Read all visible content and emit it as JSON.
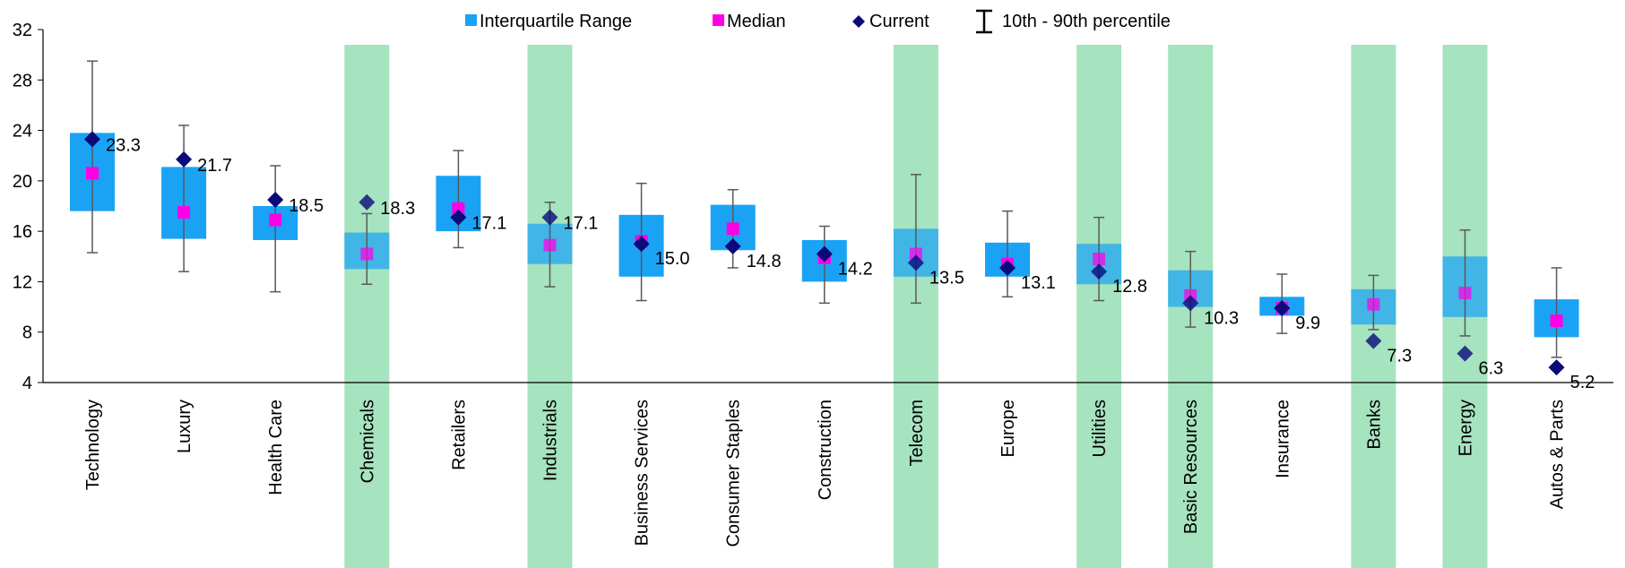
{
  "chart_data": {
    "type": "box",
    "categories": [
      "Technology",
      "Luxury",
      "Health Care",
      "Chemicals",
      "Retailers",
      "Industrials",
      "Business Services",
      "Consumer Staples",
      "Construction",
      "Telecom",
      "Europe",
      "Utilities",
      "Basic Resources",
      "Insurance",
      "Banks",
      "Energy",
      "Autos & Parts"
    ],
    "highlighted": [
      false,
      false,
      false,
      true,
      false,
      true,
      false,
      false,
      false,
      true,
      false,
      true,
      true,
      false,
      true,
      true,
      false
    ],
    "series": [
      {
        "name": "Interquartile Range",
        "q1": [
          17.6,
          15.4,
          15.3,
          13.0,
          16.0,
          13.4,
          12.4,
          14.5,
          12.0,
          12.4,
          12.4,
          11.8,
          10.0,
          9.3,
          8.6,
          9.2,
          7.6
        ],
        "q3": [
          23.8,
          21.1,
          18.0,
          15.9,
          20.4,
          16.6,
          17.3,
          18.1,
          15.3,
          16.2,
          15.1,
          15.0,
          12.9,
          10.8,
          11.4,
          14.0,
          10.6
        ]
      },
      {
        "name": "Median",
        "values": [
          20.6,
          17.5,
          16.9,
          14.2,
          17.8,
          14.9,
          15.2,
          16.2,
          13.9,
          14.2,
          13.4,
          13.8,
          10.9,
          9.9,
          10.2,
          11.1,
          8.9
        ]
      },
      {
        "name": "Current",
        "values": [
          23.3,
          21.7,
          18.5,
          18.3,
          17.1,
          17.1,
          15.0,
          14.8,
          14.2,
          13.5,
          13.1,
          12.8,
          10.3,
          9.9,
          7.3,
          6.3,
          5.2
        ]
      },
      {
        "name": "10th - 90th percentile",
        "p10": [
          14.3,
          12.8,
          11.2,
          11.8,
          14.7,
          11.6,
          10.5,
          13.1,
          10.3,
          10.3,
          10.8,
          10.5,
          8.4,
          7.9,
          8.2,
          7.7,
          6.0
        ],
        "p90": [
          29.5,
          24.4,
          21.2,
          17.4,
          22.4,
          18.3,
          19.8,
          19.3,
          16.4,
          20.5,
          17.6,
          17.1,
          14.4,
          12.6,
          12.5,
          16.1,
          13.1
        ]
      }
    ],
    "current_labels": [
      "23.3",
      "21.7",
      "18.5",
      "18.3",
      "17.1",
      "17.1",
      "15.0",
      "14.8",
      "14.2",
      "13.5",
      "13.1",
      "12.8",
      "10.3",
      "9.9",
      "7.3",
      "6.3",
      "5.2"
    ],
    "ylim": [
      4,
      32
    ],
    "yticks": [
      "4",
      "8",
      "12",
      "16",
      "20",
      "24",
      "28",
      "32"
    ],
    "legend": {
      "position": "top",
      "items": [
        {
          "label": "Interquartile Range",
          "marker": "square",
          "color": "#1aa3f5"
        },
        {
          "label": "Median",
          "marker": "square",
          "color": "#ff00e6"
        },
        {
          "label": "Current",
          "marker": "diamond",
          "color": "#0a0a7a"
        },
        {
          "label": "10th - 90th percentile",
          "marker": "errorbar",
          "color": "#000000"
        }
      ]
    },
    "colors": {
      "iqr": "#1aa3f5",
      "median": "#ff00e6",
      "current": "#0a0a7a",
      "whisker": "#595959",
      "highlight_band": "#a6e3bf"
    },
    "grid": false
  }
}
